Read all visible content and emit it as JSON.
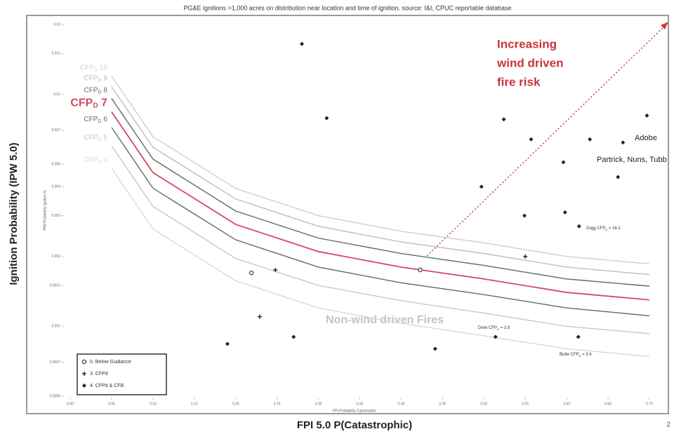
{
  "chart_data": {
    "type": "scatter",
    "title": "PG&E ignitions >1,000 acres on distribution near location and time of ignition. source: I&I, CPUC reportable database",
    "x_label": "FPI 5.0 P(Catastrophic)",
    "y_label": "Ignition Probability  (IPW 5.0)",
    "inner_x_label": "FPI Probability Catastrophic",
    "inner_y_label": "IPW Probability Ignition %",
    "page_number": "2",
    "xlim": [
      0,
      0.7
    ],
    "xticks": [
      {
        "value": 0,
        "label": "0.00"
      },
      0.05,
      {
        "value": 0.1,
        "label": "0.10"
      },
      0.15,
      {
        "value": 0.2,
        "label": "0.20"
      },
      0.25,
      {
        "value": 0.3,
        "label": "0.30"
      },
      0.35,
      {
        "value": 0.4,
        "label": "0.40"
      },
      0.45,
      {
        "value": 0.5,
        "label": "0.50"
      },
      0.55,
      {
        "value": 0.6,
        "label": "0.60"
      },
      0.65,
      {
        "value": 0.7,
        "label": "0.70"
      }
    ],
    "ylim": [
      0.0005,
      0.02
    ],
    "yticks": [
      0.0005,
      0.0007,
      0.001,
      0.0015,
      0.002,
      0.003,
      0.004,
      0.005,
      0.007,
      0.01,
      0.015,
      0.02
    ],
    "y_scale": "log",
    "series": [
      {
        "name": "0. Below Guidance",
        "marker": "circle",
        "color": "#333333",
        "x": [
          0.423,
          0.219
        ],
        "values": [
          0.00175,
          0.0017
        ]
      },
      {
        "name": "3. CFPd",
        "marker": "plus",
        "color": "#333333",
        "x": [
          0.55,
          0.248,
          0.229
        ],
        "values": [
          0.002,
          0.00175,
          0.0011
        ]
      },
      {
        "name": "4. CFPd & CFB",
        "marker": "diamond",
        "color": "#222222",
        "x": [
          0.28,
          0.31,
          0.524,
          0.557,
          0.628,
          0.668,
          0.697,
          0.596,
          0.662,
          0.497,
          0.598,
          0.549,
          0.615,
          0.27,
          0.19,
          0.441,
          0.514,
          0.614
        ],
        "values": [
          0.0165,
          0.0079,
          0.0078,
          0.0064,
          0.0064,
          0.0062,
          0.0081,
          0.0051,
          0.0044,
          0.004,
          0.0031,
          0.003,
          0.0027,
          0.0009,
          0.00084,
          0.0008,
          0.0009,
          0.0009
        ]
      }
    ],
    "curve_x": [
      0.05,
      0.1,
      0.2,
      0.3,
      0.4,
      0.5,
      0.6,
      0.7
    ],
    "curves": [
      {
        "label": "CFP",
        "sub": "D",
        "level": 10,
        "color": "#d0d0d0",
        "values": [
          0.012,
          0.00657,
          0.00393,
          0.003,
          0.00257,
          0.00229,
          0.002,
          0.00186
        ]
      },
      {
        "label": "CFP",
        "sub": "D",
        "level": 9,
        "color": "#bdbdbd",
        "values": [
          0.0108,
          0.00591,
          0.00354,
          0.0027,
          0.00231,
          0.00206,
          0.0018,
          0.00167
        ]
      },
      {
        "label": "CFP",
        "sub": "D",
        "level": 8,
        "color": "#5e6b6b",
        "values": [
          0.0096,
          0.00526,
          0.00314,
          0.0024,
          0.00206,
          0.00183,
          0.0016,
          0.00149
        ]
      },
      {
        "label": "CFP",
        "sub": "D",
        "level": 7,
        "color": "#d8485f",
        "values": [
          0.0084,
          0.0046,
          0.00275,
          0.0021,
          0.0018,
          0.0016,
          0.0014,
          0.0013
        ]
      },
      {
        "label": "CFP",
        "sub": "D",
        "level": 6,
        "color": "#5e6b6b",
        "values": [
          0.0072,
          0.00394,
          0.00236,
          0.0018,
          0.00154,
          0.00137,
          0.0012,
          0.00111
        ]
      },
      {
        "label": "CFP",
        "sub": "D",
        "level": 5,
        "color": "#c8c8c8",
        "values": [
          0.006,
          0.00329,
          0.00196,
          0.0015,
          0.00129,
          0.00114,
          0.001,
          0.00093
        ]
      },
      {
        "label": "CFP",
        "sub": "D",
        "level": 4,
        "color": "#d8d8d8",
        "values": [
          0.0048,
          0.00263,
          0.00157,
          0.0012,
          0.00103,
          0.00091,
          0.0008,
          0.00074
        ]
      }
    ],
    "annotations": {
      "wind_risk": [
        "Increasing",
        "wind driven",
        "fire risk"
      ],
      "non_wind": "Non-wind driven Fires",
      "adobe": "Adobe",
      "partrick": "Partrick, Nuns, Tubb",
      "zogg": {
        "name": "Zogg CFP",
        "sub": "D",
        "rest": " = 16.2"
      },
      "dixie": {
        "name": "Dixie CFP",
        "sub": "D",
        "rest": " = 1.8"
      },
      "butte": {
        "name": "Butte CFP",
        "sub": "D",
        "rest": " = 3.4"
      }
    }
  }
}
